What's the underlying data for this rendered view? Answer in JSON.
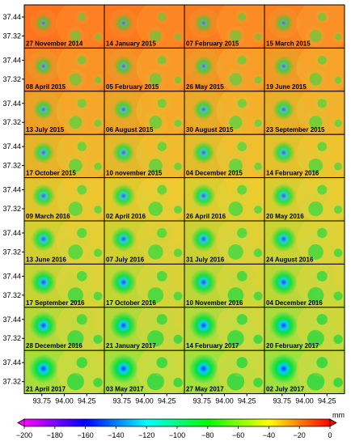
{
  "chart_data": {
    "type": "heatmap",
    "grid": {
      "rows": 9,
      "cols": 4
    },
    "panels": [
      "27 November 2014",
      "14 January 2015",
      "07 February 2015",
      "15 March 2015",
      "08 April 2015",
      "05 February 2015",
      "26 May 2015",
      "19 June 2015",
      "13 July 2015",
      "06 August 2015",
      "30 August 2015",
      "23 September 2015",
      "17 October 2015",
      "10 november 2015",
      "04 December 2015",
      "14 February 2016",
      "09 March 2016",
      "02 April 2016",
      "26 April 2016",
      "20 May 2016",
      "13 June 2016",
      "07 July 2016",
      "31 July 2016",
      "24 August 2016",
      "17 September 2016",
      "17 October 2016",
      "10 November 2016",
      "04 December 2016",
      "28 December 2016",
      "21 January 2017",
      "14 February 2017",
      "20 February 2017",
      "21 April 2017",
      "03 May 2017",
      "27 May 2017",
      "02 July 2017"
    ],
    "y_ticks": [
      "37.44",
      "37.32"
    ],
    "x_ticks": [
      "93.75",
      "94.00",
      "94.25"
    ],
    "colorbar": {
      "unit": "mm",
      "range": [
        -200,
        0
      ],
      "ticks": [
        "−200",
        "−180",
        "−160",
        "−140",
        "−120",
        "−100",
        "−80",
        "−60",
        "−40",
        "−20",
        "0"
      ],
      "colors": [
        "#ff00ff",
        "#0000ff",
        "#00ffff",
        "#00ff00",
        "#ffff00",
        "#ff0000"
      ]
    }
  }
}
